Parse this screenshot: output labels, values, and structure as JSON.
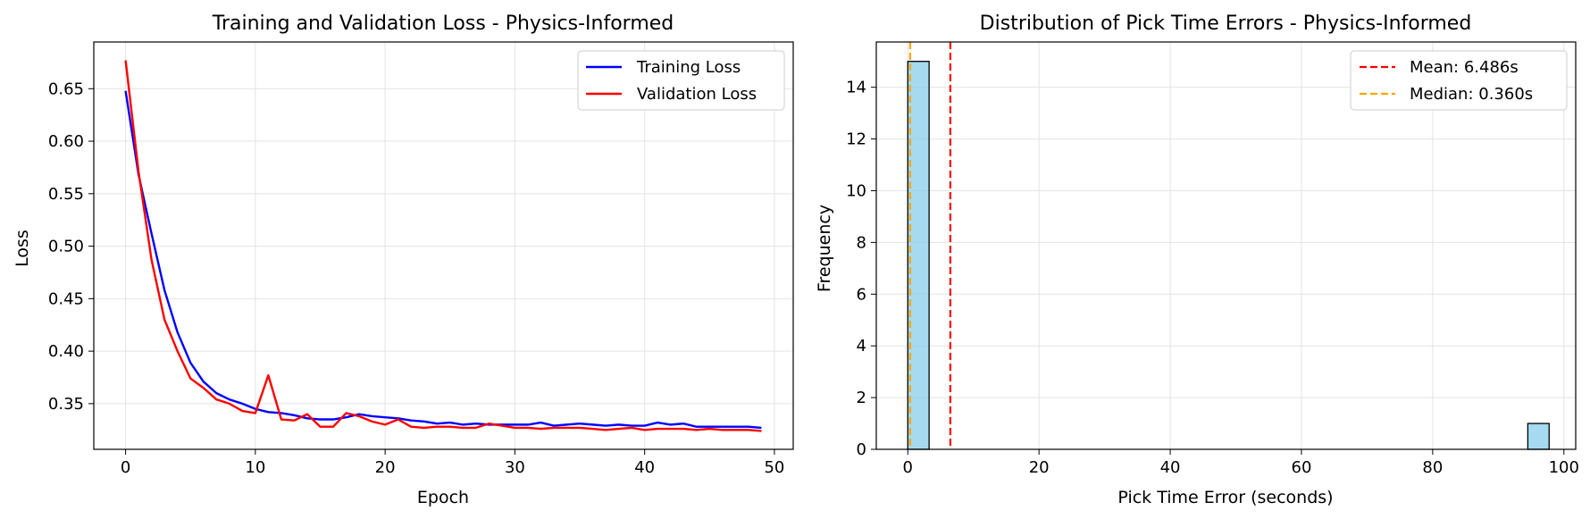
{
  "chart_data": [
    {
      "type": "line",
      "title": "Training and Validation Loss - Physics-Informed",
      "xlabel": "Epoch",
      "ylabel": "Loss",
      "xlim": [
        -2.45,
        51.45
      ],
      "ylim": [
        0.3065,
        0.6945
      ],
      "xticks": [
        0,
        10,
        20,
        30,
        40,
        50
      ],
      "yticks": [
        0.35,
        0.4,
        0.45,
        0.5,
        0.55,
        0.6,
        0.65
      ],
      "ytick_labels": [
        "0.35",
        "0.40",
        "0.45",
        "0.50",
        "0.55",
        "0.60",
        "0.65"
      ],
      "grid": true,
      "legend_position": "top-right",
      "x": [
        0,
        1,
        2,
        3,
        4,
        5,
        6,
        7,
        8,
        9,
        10,
        11,
        12,
        13,
        14,
        15,
        16,
        17,
        18,
        19,
        20,
        21,
        22,
        23,
        24,
        25,
        26,
        27,
        28,
        29,
        30,
        31,
        32,
        33,
        34,
        35,
        36,
        37,
        38,
        39,
        40,
        41,
        42,
        43,
        44,
        45,
        46,
        47,
        48,
        49
      ],
      "series": [
        {
          "name": "Training Loss",
          "color": "#0000ff",
          "values": [
            0.648,
            0.568,
            0.512,
            0.458,
            0.418,
            0.389,
            0.371,
            0.36,
            0.354,
            0.35,
            0.345,
            0.342,
            0.341,
            0.339,
            0.336,
            0.335,
            0.335,
            0.337,
            0.34,
            0.338,
            0.337,
            0.336,
            0.334,
            0.333,
            0.331,
            0.332,
            0.33,
            0.331,
            0.33,
            0.33,
            0.33,
            0.33,
            0.332,
            0.329,
            0.33,
            0.331,
            0.33,
            0.329,
            0.33,
            0.329,
            0.329,
            0.332,
            0.33,
            0.331,
            0.328,
            0.328,
            0.328,
            0.328,
            0.328,
            0.327
          ]
        },
        {
          "name": "Validation Loss",
          "color": "#ff0000",
          "values": [
            0.677,
            0.571,
            0.487,
            0.43,
            0.4,
            0.374,
            0.365,
            0.354,
            0.35,
            0.343,
            0.341,
            0.377,
            0.335,
            0.334,
            0.34,
            0.328,
            0.328,
            0.341,
            0.338,
            0.333,
            0.33,
            0.335,
            0.328,
            0.327,
            0.328,
            0.328,
            0.327,
            0.327,
            0.331,
            0.329,
            0.327,
            0.327,
            0.326,
            0.327,
            0.327,
            0.327,
            0.326,
            0.325,
            0.326,
            0.327,
            0.325,
            0.326,
            0.326,
            0.326,
            0.325,
            0.326,
            0.325,
            0.325,
            0.325,
            0.324
          ]
        }
      ]
    },
    {
      "type": "histogram",
      "title": "Distribution of Pick Time Errors - Physics-Informed",
      "xlabel": "Pick Time Error (seconds)",
      "ylabel": "Frequency",
      "xlim": [
        -4.8,
        101.8
      ],
      "ylim": [
        0,
        15.75
      ],
      "xticks": [
        0,
        20,
        40,
        60,
        80,
        100
      ],
      "yticks": [
        0,
        2,
        4,
        6,
        8,
        10,
        12,
        14
      ],
      "grid": true,
      "legend_position": "top-right",
      "bar_color": "#87ceeb",
      "bar_edge_color": "#000000",
      "bins": [
        {
          "x0": 0.0,
          "x1": 3.25,
          "count": 15
        },
        {
          "x0": 94.5,
          "x1": 97.75,
          "count": 1
        }
      ],
      "reference_lines": [
        {
          "name": "Mean: 6.486s",
          "value": 6.486,
          "color": "#ff0000"
        },
        {
          "name": "Median: 0.360s",
          "value": 0.36,
          "color": "#ffa500"
        }
      ]
    }
  ]
}
